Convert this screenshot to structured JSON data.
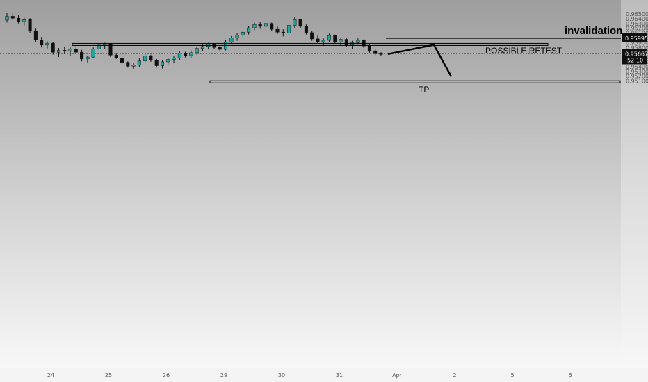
{
  "chart_data": {
    "type": "candlestick",
    "price_axis": {
      "ylim": [
        0.95,
        0.9655
      ],
      "ticks": [
        "0.96500",
        "0.96400",
        "0.96300",
        "0.96200",
        "0.96100",
        "0.96000",
        "0.95900",
        "0.95800",
        "0.95700",
        "0.95600",
        "0.95500",
        "0.95400",
        "0.95300",
        "0.95200",
        "0.95100"
      ]
    },
    "time_axis": {
      "labels": [
        "24",
        "25",
        "26",
        "29",
        "30",
        "31",
        "Apr",
        "2",
        "5",
        "6"
      ]
    },
    "current_price": {
      "value": 0.95667,
      "label": "0.95667",
      "countdown": "52:10"
    },
    "invalidation": {
      "value": 0.95995,
      "label": "0.95995",
      "text": "invalidation"
    },
    "retest_zone": {
      "top": 0.95885,
      "bottom": 0.95875,
      "text": "POSSIBLE RETEST"
    },
    "tp_zone": {
      "top": 0.95105,
      "bottom": 0.95095,
      "text": "TP"
    },
    "projected_path": [
      0.95662,
      0.95855,
      0.95105
    ],
    "candles": [
      [
        0.9637,
        0.9652,
        0.9632,
        0.9645
      ],
      [
        0.9645,
        0.9653,
        0.9638,
        0.9641
      ],
      [
        0.9641,
        0.9647,
        0.963,
        0.9634
      ],
      [
        0.9634,
        0.9642,
        0.9626,
        0.9638
      ],
      [
        0.9638,
        0.9641,
        0.961,
        0.9615
      ],
      [
        0.9615,
        0.962,
        0.9592,
        0.9596
      ],
      [
        0.9596,
        0.9602,
        0.958,
        0.9585
      ],
      [
        0.9585,
        0.9593,
        0.9578,
        0.9589
      ],
      [
        0.9589,
        0.9591,
        0.9565,
        0.957
      ],
      [
        0.957,
        0.9579,
        0.956,
        0.9574
      ],
      [
        0.9574,
        0.9582,
        0.9566,
        0.9572
      ],
      [
        0.9572,
        0.958,
        0.9562,
        0.9577
      ],
      [
        0.9577,
        0.9583,
        0.9567,
        0.957
      ],
      [
        0.957,
        0.9575,
        0.9551,
        0.9556
      ],
      [
        0.9556,
        0.9563,
        0.9549,
        0.956
      ],
      [
        0.956,
        0.958,
        0.9558,
        0.9577
      ],
      [
        0.9577,
        0.9588,
        0.9573,
        0.9585
      ],
      [
        0.9585,
        0.959,
        0.9577,
        0.9588
      ],
      [
        0.9588,
        0.9589,
        0.956,
        0.9564
      ],
      [
        0.9564,
        0.9569,
        0.9556,
        0.9558
      ],
      [
        0.9558,
        0.9562,
        0.9545,
        0.9549
      ],
      [
        0.9549,
        0.9551,
        0.9538,
        0.9541
      ],
      [
        0.9541,
        0.9547,
        0.9535,
        0.9543
      ],
      [
        0.9543,
        0.9557,
        0.9539,
        0.9552
      ],
      [
        0.9552,
        0.9566,
        0.9547,
        0.9562
      ],
      [
        0.9562,
        0.9565,
        0.955,
        0.9554
      ],
      [
        0.9554,
        0.9556,
        0.9538,
        0.9542
      ],
      [
        0.9542,
        0.9553,
        0.9536,
        0.955
      ],
      [
        0.955,
        0.9558,
        0.9545,
        0.9555
      ],
      [
        0.9555,
        0.9563,
        0.9547,
        0.9558
      ],
      [
        0.9558,
        0.9572,
        0.9554,
        0.9568
      ],
      [
        0.9568,
        0.9571,
        0.9559,
        0.9563
      ],
      [
        0.9563,
        0.9574,
        0.9558,
        0.9569
      ],
      [
        0.9569,
        0.9582,
        0.9565,
        0.9578
      ],
      [
        0.9578,
        0.9586,
        0.9573,
        0.9582
      ],
      [
        0.9582,
        0.959,
        0.9576,
        0.9587
      ],
      [
        0.9587,
        0.9589,
        0.9576,
        0.958
      ],
      [
        0.958,
        0.9584,
        0.9571,
        0.9576
      ],
      [
        0.9576,
        0.9595,
        0.9574,
        0.9591
      ],
      [
        0.9591,
        0.9604,
        0.9587,
        0.96
      ],
      [
        0.96,
        0.961,
        0.9594,
        0.9606
      ],
      [
        0.9606,
        0.9616,
        0.9601,
        0.9612
      ],
      [
        0.9612,
        0.9625,
        0.9607,
        0.9621
      ],
      [
        0.9621,
        0.9632,
        0.9616,
        0.9628
      ],
      [
        0.9628,
        0.9633,
        0.9619,
        0.9624
      ],
      [
        0.9624,
        0.9634,
        0.9618,
        0.963
      ],
      [
        0.963,
        0.9632,
        0.9614,
        0.9618
      ],
      [
        0.9618,
        0.9624,
        0.9608,
        0.9612
      ],
      [
        0.9612,
        0.9618,
        0.9603,
        0.961
      ],
      [
        0.961,
        0.9629,
        0.9607,
        0.9626
      ],
      [
        0.9626,
        0.9643,
        0.9621,
        0.9638
      ],
      [
        0.9638,
        0.964,
        0.962,
        0.9624
      ],
      [
        0.9624,
        0.9628,
        0.9607,
        0.9611
      ],
      [
        0.9611,
        0.9614,
        0.9594,
        0.9598
      ],
      [
        0.9598,
        0.9605,
        0.9588,
        0.9592
      ],
      [
        0.9592,
        0.9599,
        0.9584,
        0.9595
      ],
      [
        0.9595,
        0.9609,
        0.9591,
        0.9605
      ],
      [
        0.9605,
        0.9607,
        0.9588,
        0.9591
      ],
      [
        0.9591,
        0.9601,
        0.9583,
        0.9597
      ],
      [
        0.9597,
        0.9599,
        0.9581,
        0.9585
      ],
      [
        0.9585,
        0.9594,
        0.9576,
        0.959
      ],
      [
        0.959,
        0.9599,
        0.9586,
        0.9595
      ],
      [
        0.9595,
        0.9597,
        0.9579,
        0.9583
      ],
      [
        0.9583,
        0.9586,
        0.9569,
        0.9573
      ],
      [
        0.9573,
        0.9576,
        0.9564,
        0.9567
      ],
      [
        0.9567,
        0.957,
        0.9563,
        0.9566
      ]
    ]
  }
}
